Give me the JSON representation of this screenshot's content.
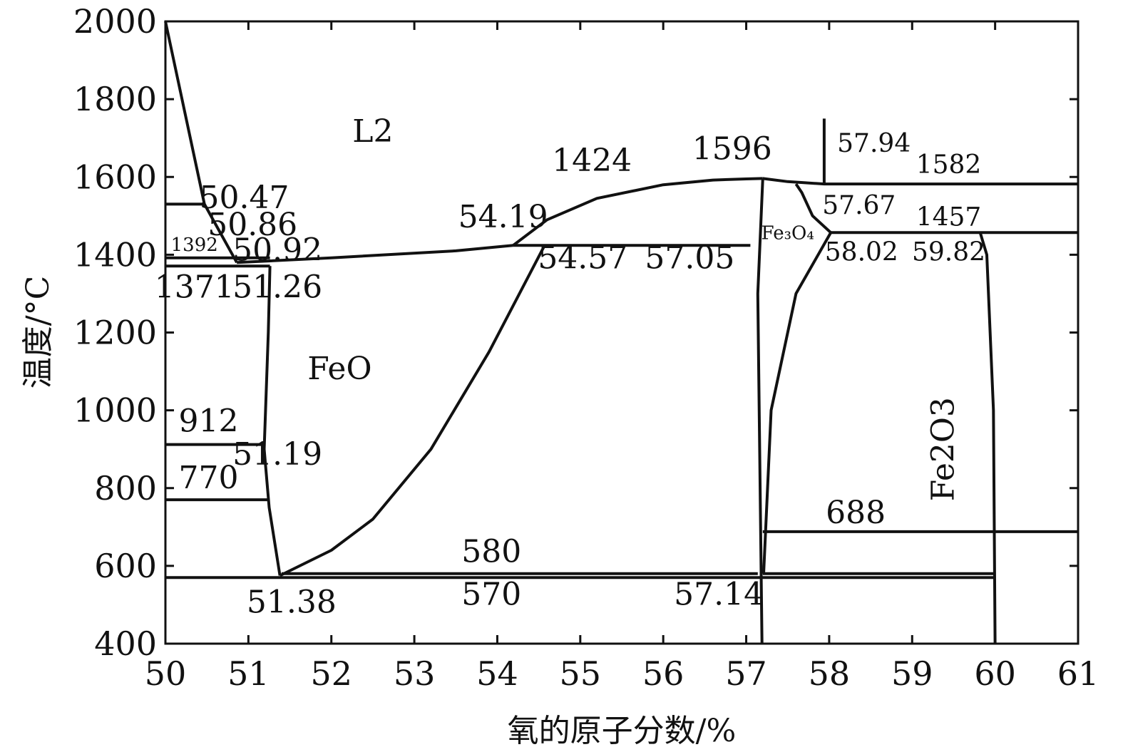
{
  "chart_data": {
    "type": "line",
    "title": "",
    "xlabel": "氧的原子分数/%",
    "ylabel": "温度/°C",
    "xlim": [
      50,
      61
    ],
    "ylim": [
      400,
      2000
    ],
    "x_ticks": [
      "50",
      "51",
      "52",
      "53",
      "54",
      "55",
      "56",
      "57",
      "58",
      "59",
      "60",
      "61"
    ],
    "y_ticks": [
      "400",
      "600",
      "800",
      "1000",
      "1200",
      "1400",
      "1600",
      "1800",
      "2000"
    ],
    "grid": false,
    "legend": "none",
    "line_color": "#111111",
    "series": [
      {
        "x": [
          50.0,
          50.47,
          50.86
        ],
        "y": [
          2000,
          1530,
          1380
        ]
      },
      {
        "x": [
          50.86,
          52.0,
          53.5,
          54.19
        ],
        "y": [
          1380,
          1392,
          1410,
          1424
        ]
      },
      {
        "x": [
          54.19,
          54.6,
          55.2,
          56.0,
          56.6,
          57.0,
          57.2
        ],
        "y": [
          1424,
          1490,
          1545,
          1580,
          1592,
          1595,
          1596
        ]
      },
      {
        "x": [
          57.2,
          57.5,
          57.94,
          61.0
        ],
        "y": [
          1596,
          1588,
          1582,
          1582
        ]
      },
      {
        "x": [
          57.2,
          57.14,
          57.19
        ],
        "y": [
          1596,
          1300,
          400
        ]
      },
      {
        "x": [
          57.21,
          57.3,
          57.6,
          58.02
        ],
        "y": [
          580,
          1000,
          1300,
          1457
        ]
      },
      {
        "x": [
          57.6,
          57.67,
          57.8,
          58.02
        ],
        "y": [
          1582,
          1560,
          1500,
          1457
        ]
      },
      {
        "x": [
          58.02,
          61.0
        ],
        "y": [
          1457,
          1457
        ]
      },
      {
        "x": [
          59.82,
          59.9,
          59.98,
          60.0
        ],
        "y": [
          1457,
          1400,
          1000,
          400
        ]
      },
      {
        "x": [
          50.0,
          50.47
        ],
        "y": [
          1530,
          1530
        ]
      },
      {
        "x": [
          50.0,
          51.26
        ],
        "y": [
          1392,
          1392
        ]
      },
      {
        "x": [
          50.0,
          51.26
        ],
        "y": [
          1371,
          1371
        ]
      },
      {
        "x": [
          51.26,
          51.24,
          51.19,
          51.25,
          51.38
        ],
        "y": [
          1371,
          1200,
          900,
          750,
          575
        ]
      },
      {
        "x": [
          50.0,
          51.2
        ],
        "y": [
          912,
          912
        ]
      },
      {
        "x": [
          50.0,
          51.25
        ],
        "y": [
          770,
          770
        ]
      },
      {
        "x": [
          51.38,
          52.0,
          52.5,
          53.2,
          53.9,
          54.57
        ],
        "y": [
          575,
          640,
          720,
          900,
          1150,
          1424
        ]
      },
      {
        "x": [
          54.19,
          57.05
        ],
        "y": [
          1424,
          1424
        ]
      },
      {
        "x": [
          51.4,
          57.14
        ],
        "y": [
          580,
          580
        ]
      },
      {
        "x": [
          50.0,
          60.0
        ],
        "y": [
          570,
          570
        ]
      },
      {
        "x": [
          57.2,
          61.0
        ],
        "y": [
          688,
          688
        ]
      },
      {
        "x": [
          57.2,
          60.0
        ],
        "y": [
          580,
          580
        ]
      },
      {
        "x": [
          57.94,
          57.94
        ],
        "y": [
          1750,
          1582
        ]
      }
    ],
    "annotations": [
      {
        "text": "L2",
        "x": 52.5,
        "y": 1690
      },
      {
        "text": "FeO",
        "x": 52.1,
        "y": 1080
      },
      {
        "text": "Fe₃O₄",
        "x": 57.5,
        "y": 1440
      },
      {
        "text": "Fe2O3",
        "x": 59.5,
        "y": 900
      },
      {
        "text": "50.47",
        "x": 50.95,
        "y": 1520
      },
      {
        "text": "50.86",
        "x": 51.05,
        "y": 1450
      },
      {
        "text": "50.92",
        "x": 51.35,
        "y": 1385
      },
      {
        "text": "1392",
        "x": 50.35,
        "y": 1410
      },
      {
        "text": "1371",
        "x": 50.35,
        "y": 1290
      },
      {
        "text": "51.26",
        "x": 51.35,
        "y": 1290
      },
      {
        "text": "54.19",
        "x": 54.07,
        "y": 1470
      },
      {
        "text": "1424",
        "x": 55.14,
        "y": 1615
      },
      {
        "text": "1596",
        "x": 56.83,
        "y": 1645
      },
      {
        "text": "57.94",
        "x": 58.54,
        "y": 1665
      },
      {
        "text": "1582",
        "x": 59.44,
        "y": 1610
      },
      {
        "text": "57.67",
        "x": 58.36,
        "y": 1505
      },
      {
        "text": "1457",
        "x": 59.44,
        "y": 1475
      },
      {
        "text": "54.57",
        "x": 55.03,
        "y": 1365
      },
      {
        "text": "57.05",
        "x": 56.32,
        "y": 1365
      },
      {
        "text": "58.02",
        "x": 58.39,
        "y": 1385
      },
      {
        "text": "59.82",
        "x": 59.44,
        "y": 1385
      },
      {
        "text": "912",
        "x": 50.52,
        "y": 945
      },
      {
        "text": "51.19",
        "x": 51.35,
        "y": 860
      },
      {
        "text": "770",
        "x": 50.52,
        "y": 800
      },
      {
        "text": "688",
        "x": 58.32,
        "y": 710
      },
      {
        "text": "580",
        "x": 53.93,
        "y": 610
      },
      {
        "text": "570",
        "x": 53.93,
        "y": 500
      },
      {
        "text": "51.38",
        "x": 51.52,
        "y": 480
      },
      {
        "text": "57.14",
        "x": 56.67,
        "y": 500
      }
    ]
  }
}
